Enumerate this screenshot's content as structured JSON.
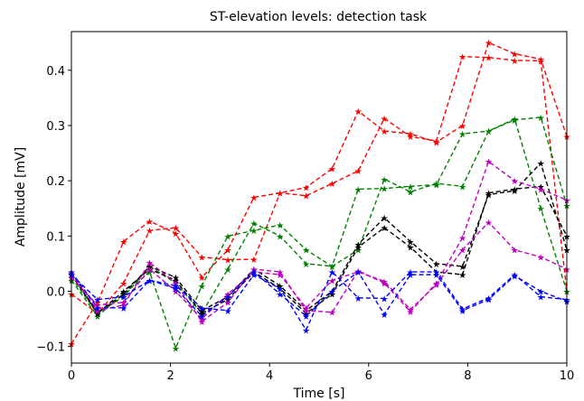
{
  "chart_data": {
    "type": "line",
    "title": "ST-elevation levels: detection task",
    "xlabel": "Time [s]",
    "ylabel": "Amplitude [mV]",
    "xlim": [
      0,
      10
    ],
    "ylim": [
      -0.13,
      0.47
    ],
    "xticks": [
      0,
      2,
      4,
      6,
      8,
      10
    ],
    "yticks": [
      -0.1,
      0.0,
      0.1,
      0.2,
      0.3,
      0.4
    ],
    "ytick_labels": [
      "−0.1",
      "0.0",
      "0.1",
      "0.2",
      "0.3",
      "0.4"
    ],
    "x": [
      0,
      0.526,
      1.053,
      1.579,
      2.105,
      2.632,
      3.158,
      3.684,
      4.211,
      4.737,
      5.263,
      5.789,
      6.316,
      6.842,
      7.368,
      7.895,
      8.421,
      8.947,
      9.474,
      10
    ],
    "marker": "star",
    "line_style": "dashed",
    "grid": false,
    "legend": "none",
    "series": [
      {
        "color": "#ff0000",
        "values": [
          -0.095,
          -0.02,
          0.09,
          0.127,
          0.105,
          0.025,
          0.075,
          0.17,
          0.178,
          0.188,
          0.222,
          0.326,
          0.29,
          0.285,
          0.27,
          0.3,
          0.45,
          0.43,
          0.42,
          0.28
        ]
      },
      {
        "color": "#ff0000",
        "values": [
          -0.005,
          -0.04,
          0.015,
          0.11,
          0.115,
          0.062,
          0.057,
          0.058,
          0.178,
          0.173,
          0.195,
          0.218,
          0.313,
          0.28,
          0.272,
          0.425,
          0.423,
          0.418,
          0.417,
          0.0
        ]
      },
      {
        "color": "#008000",
        "values": [
          0.02,
          -0.045,
          -0.005,
          0.035,
          -0.103,
          0.01,
          0.1,
          0.11,
          0.12,
          0.075,
          0.045,
          0.185,
          0.186,
          0.19,
          0.193,
          0.285,
          0.29,
          0.31,
          0.315,
          0.155
        ]
      },
      {
        "color": "#008000",
        "values": [
          0.025,
          -0.04,
          -0.01,
          0.045,
          0.015,
          -0.04,
          0.04,
          0.123,
          0.1,
          0.05,
          0.045,
          0.075,
          0.203,
          0.18,
          0.195,
          0.19,
          0.29,
          0.312,
          0.15,
          0.0
        ]
      },
      {
        "color": "#000000",
        "values": [
          0.03,
          -0.04,
          -0.005,
          0.045,
          0.025,
          -0.035,
          -0.01,
          0.04,
          0.01,
          -0.035,
          0.0,
          0.085,
          0.133,
          0.09,
          0.05,
          0.045,
          0.175,
          0.182,
          0.232,
          0.075
        ]
      },
      {
        "color": "#000000",
        "values": [
          0.035,
          -0.04,
          0.0,
          0.04,
          0.02,
          -0.04,
          -0.015,
          0.035,
          0.005,
          -0.04,
          -0.005,
          0.08,
          0.115,
          0.08,
          0.035,
          0.03,
          0.178,
          0.185,
          0.19,
          0.1
        ]
      },
      {
        "color": "#bf00bf",
        "values": [
          0.032,
          -0.035,
          -0.025,
          0.052,
          0.015,
          -0.055,
          -0.02,
          0.04,
          0.035,
          -0.035,
          -0.038,
          0.037,
          0.015,
          -0.037,
          0.015,
          0.097,
          0.235,
          0.2,
          0.185,
          0.165
        ]
      },
      {
        "color": "#bf00bf",
        "values": [
          0.025,
          -0.025,
          -0.02,
          0.04,
          0.0,
          -0.05,
          -0.005,
          0.035,
          0.03,
          -0.03,
          0.02,
          0.035,
          0.018,
          -0.033,
          0.012,
          0.075,
          0.125,
          0.075,
          0.062,
          0.04
        ]
      },
      {
        "color": "#0000ff",
        "values": [
          0.035,
          -0.03,
          -0.03,
          0.02,
          0.01,
          -0.03,
          -0.035,
          0.03,
          0.005,
          -0.07,
          0.035,
          -0.012,
          -0.013,
          0.035,
          0.035,
          -0.032,
          -0.012,
          0.03,
          -0.01,
          -0.015
        ]
      },
      {
        "color": "#0000ff",
        "values": [
          0.03,
          -0.015,
          -0.01,
          0.02,
          0.005,
          -0.045,
          -0.01,
          0.035,
          -0.005,
          -0.045,
          0.0,
          0.035,
          -0.042,
          0.03,
          0.03,
          -0.035,
          -0.015,
          0.028,
          0.0,
          -0.018
        ]
      }
    ]
  }
}
